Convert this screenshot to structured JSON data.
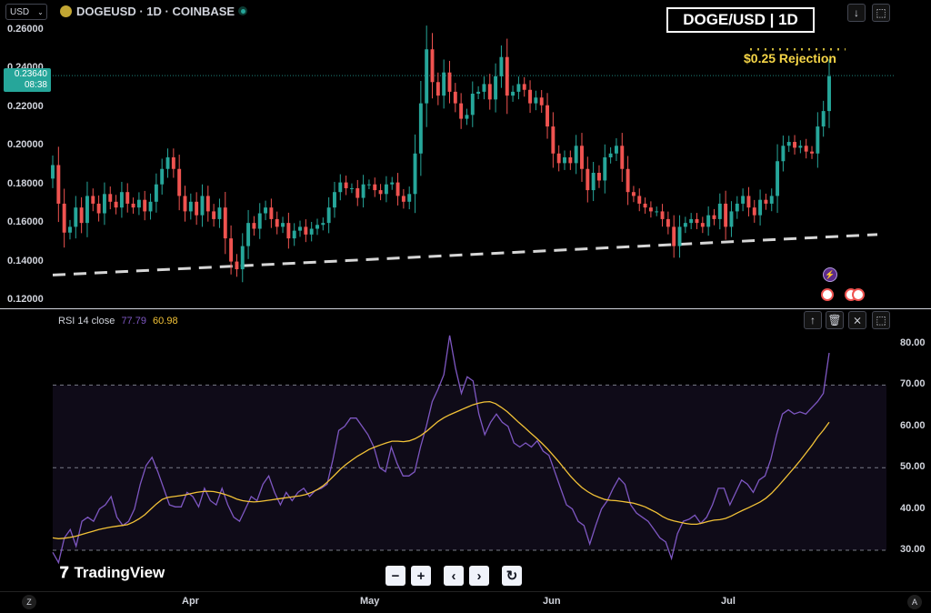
{
  "header": {
    "currency": "USD",
    "symbol_line": "DOGEUSD · 1D · COINBASE",
    "title_badge": "DOGE/USD | 1D",
    "annotation": "$0.25 Rejection"
  },
  "price_badge": {
    "price": "0.23640",
    "countdown": "08:38"
  },
  "rsi_header": {
    "label": "RSI 14 close",
    "rsi_value": "77.79",
    "ma_value": "60.98"
  },
  "watermark": "TradingView",
  "nav": {
    "zoom_out": "−",
    "zoom_in": "+",
    "back": "‹",
    "forward": "›",
    "reset": "↻"
  },
  "axis": {
    "left_corner": "Z",
    "right_corner": "A"
  },
  "colors": {
    "up": "#26a69a",
    "down": "#ef5350",
    "rsi": "#7e57c2",
    "rsi_ma": "#f2c237",
    "annotation": "#f5d547",
    "badge": "#26a69a"
  },
  "chart_data": [
    {
      "type": "candlestick",
      "title": "DOGEUSD · 1D · COINBASE",
      "ylim": [
        0.12,
        0.26
      ],
      "yticks": [
        "0.26000",
        "0.24000",
        "0.22000",
        "0.20000",
        "0.18000",
        "0.16000",
        "0.14000",
        "0.12000"
      ],
      "xticks": [
        "Apr",
        "May",
        "Jun",
        "Jul"
      ],
      "last_price": 0.2364,
      "support_line": {
        "from": 0.133,
        "to": 0.154
      },
      "resistance_level": 0.25,
      "closes": [
        0.19,
        0.17,
        0.155,
        0.158,
        0.168,
        0.16,
        0.174,
        0.17,
        0.165,
        0.175,
        0.171,
        0.168,
        0.176,
        0.17,
        0.168,
        0.172,
        0.166,
        0.171,
        0.18,
        0.188,
        0.194,
        0.188,
        0.174,
        0.166,
        0.171,
        0.164,
        0.174,
        0.166,
        0.162,
        0.168,
        0.152,
        0.14,
        0.136,
        0.148,
        0.16,
        0.157,
        0.165,
        0.168,
        0.162,
        0.158,
        0.16,
        0.152,
        0.156,
        0.158,
        0.154,
        0.157,
        0.159,
        0.16,
        0.168,
        0.176,
        0.181,
        0.178,
        0.178,
        0.173,
        0.18,
        0.18,
        0.177,
        0.175,
        0.18,
        0.181,
        0.174,
        0.171,
        0.175,
        0.196,
        0.222,
        0.25,
        0.233,
        0.226,
        0.238,
        0.228,
        0.222,
        0.214,
        0.216,
        0.227,
        0.228,
        0.232,
        0.224,
        0.236,
        0.246,
        0.226,
        0.228,
        0.232,
        0.229,
        0.222,
        0.225,
        0.221,
        0.21,
        0.196,
        0.191,
        0.194,
        0.191,
        0.2,
        0.188,
        0.177,
        0.186,
        0.182,
        0.194,
        0.196,
        0.2,
        0.188,
        0.176,
        0.174,
        0.17,
        0.168,
        0.166,
        0.166,
        0.162,
        0.158,
        0.148,
        0.158,
        0.16,
        0.162,
        0.16,
        0.158,
        0.164,
        0.162,
        0.17,
        0.158,
        0.166,
        0.17,
        0.174,
        0.168,
        0.164,
        0.172,
        0.17,
        0.174,
        0.192,
        0.2,
        0.202,
        0.199,
        0.2,
        0.197,
        0.196,
        0.21,
        0.218,
        0.236
      ]
    },
    {
      "type": "line",
      "title": "RSI 14 close",
      "ylim": [
        25,
        83
      ],
      "yticks": [
        "80.00",
        "70.00",
        "60.00",
        "50.00",
        "40.00",
        "30.00"
      ],
      "bands": {
        "upper": 70,
        "middle": 50,
        "lower": 30
      },
      "series": [
        {
          "name": "RSI",
          "values": [
            29.5,
            27.0,
            33.0,
            35.0,
            31.0,
            37.0,
            38.0,
            37.0,
            40.0,
            41.0,
            43.0,
            38.0,
            36.0,
            37.0,
            40.0,
            46.0,
            50.5,
            52.5,
            49.0,
            45.0,
            41.0,
            40.5,
            40.5,
            44.0,
            43.0,
            40.5,
            45.0,
            42.0,
            41.0,
            45.0,
            41.0,
            38.0,
            37.0,
            40.0,
            43.0,
            42.0,
            46.0,
            48.0,
            44.0,
            41.0,
            44.0,
            42.0,
            44.0,
            45.0,
            43.0,
            44.5,
            45.0,
            46.0,
            52.0,
            59.0,
            60.0,
            62.0,
            62.0,
            60.0,
            58.0,
            55.0,
            50.0,
            49.0,
            55.0,
            51.0,
            48.0,
            48.0,
            49.0,
            55.0,
            60.0,
            66.0,
            69.0,
            72.5,
            82.0,
            74.0,
            68.0,
            72.0,
            71.0,
            63.0,
            58.0,
            61.0,
            63.0,
            61.0,
            60.0,
            56.0,
            55.0,
            56.0,
            55.0,
            56.5,
            54.0,
            53.0,
            49.0,
            45.0,
            41.0,
            40.0,
            37.0,
            36.0,
            31.5,
            36.0,
            40.0,
            42.0,
            45.0,
            47.5,
            46.0,
            41.0,
            39.0,
            38.0,
            37.0,
            35.0,
            33.0,
            32.0,
            28.0,
            34.0,
            37.0,
            37.5,
            38.5,
            36.5,
            38.0,
            41.0,
            45.0,
            45.0,
            41.0,
            44.0,
            47.0,
            46.0,
            44.0,
            47.0,
            48.0,
            52.0,
            58.0,
            63.0,
            64.0,
            63.0,
            63.5,
            63.0,
            64.5,
            66.0,
            68.0,
            77.8
          ]
        },
        {
          "name": "MA",
          "values": [
            33.0,
            32.8,
            32.9,
            33.1,
            33.4,
            33.8,
            34.2,
            34.6,
            35.0,
            35.3,
            35.6,
            35.8,
            36.0,
            36.2,
            36.8,
            37.6,
            38.6,
            39.9,
            41.2,
            42.3,
            42.8,
            43.0,
            43.2,
            43.4,
            43.7,
            44.0,
            44.2,
            44.3,
            44.2,
            43.9,
            43.5,
            43.0,
            42.4,
            42.0,
            41.8,
            41.7,
            41.8,
            42.0,
            42.2,
            42.4,
            42.6,
            42.8,
            43.0,
            43.2,
            43.5,
            44.0,
            44.7,
            45.6,
            46.8,
            48.2,
            49.6,
            50.8,
            51.8,
            52.8,
            53.6,
            54.4,
            55.0,
            55.5,
            56.0,
            56.4,
            56.4,
            56.3,
            56.5,
            57.0,
            57.8,
            58.8,
            60.0,
            61.2,
            62.1,
            62.8,
            63.4,
            64.0,
            64.6,
            65.2,
            65.6,
            65.9,
            66.0,
            65.5,
            64.6,
            63.6,
            62.3,
            61.0,
            59.8,
            58.5,
            57.3,
            56.0,
            54.6,
            53.0,
            51.4,
            49.7,
            48.0,
            46.5,
            45.2,
            44.2,
            43.4,
            42.8,
            42.3,
            42.1,
            42.0,
            41.8,
            41.6,
            41.4,
            41.0,
            40.5,
            39.8,
            39.1,
            38.2,
            37.5,
            37.1,
            36.8,
            36.5,
            36.3,
            36.3,
            36.6,
            37.0,
            37.3,
            37.4,
            37.7,
            38.3,
            39.0,
            39.7,
            40.3,
            41.0,
            41.7,
            42.6,
            43.8,
            45.3,
            46.9,
            48.5,
            50.1,
            51.8,
            53.6,
            55.4,
            57.4,
            59.1,
            61.0
          ]
        }
      ]
    }
  ]
}
